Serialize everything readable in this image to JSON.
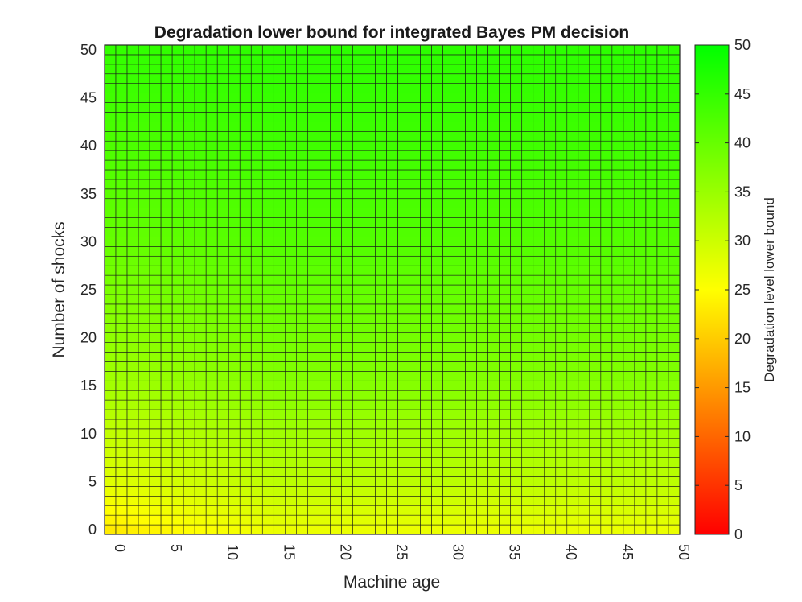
{
  "chart_data": {
    "type": "heatmap",
    "title": "Degradation lower bound for integrated Bayes PM decision",
    "xlabel": "Machine age",
    "ylabel": "Number of shocks",
    "colorbar_label": "Degradation level lower bound",
    "x_range": [
      0,
      50
    ],
    "y_range": [
      0,
      50
    ],
    "x_ticks": [
      0,
      5,
      10,
      15,
      20,
      25,
      30,
      35,
      40,
      45,
      50
    ],
    "y_ticks": [
      0,
      5,
      10,
      15,
      20,
      25,
      30,
      35,
      40,
      45,
      50
    ],
    "colorbar_range": [
      0,
      50
    ],
    "colorbar_ticks": [
      0,
      5,
      10,
      15,
      20,
      25,
      30,
      35,
      40,
      45,
      50
    ],
    "colormap": [
      "#ff0000",
      "#ffff00",
      "#00ff00"
    ],
    "grid_cell_edges": "#1a1a1a",
    "value_model": {
      "description_values": "approximate degradation lower bound per cell",
      "corner_origin": 23,
      "at_shocks_5": 28,
      "at_shocks_15": 34,
      "at_shocks_30": 40,
      "at_shocks_50": 45,
      "machine_age_effect_max": 4
    }
  }
}
